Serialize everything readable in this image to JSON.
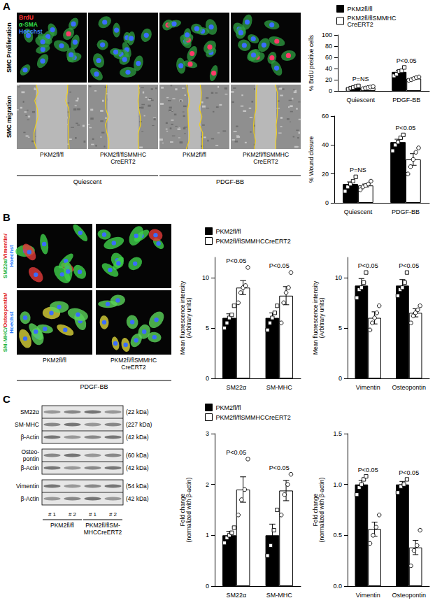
{
  "panel_labels": [
    "A",
    "B",
    "C"
  ],
  "panel_a_images": {
    "channel_labels": [
      {
        "text": "BrdU",
        "color": "#ff3030"
      },
      {
        "text": "α-SMA",
        "color": "#33e04a"
      },
      {
        "text": "Hoechst",
        "color": "#3f8cff"
      }
    ],
    "row_labels": [
      "SMC Proliferation",
      "SMC migration"
    ],
    "column_labels": [
      "PKM2fl/fl",
      "PKM2fl/flSMMHC\nCreERT2",
      "PKM2fl/fl",
      "PKM2fl/flSMMHC\nCreERT2"
    ],
    "group_labels": [
      "Quiescent",
      "PDGF-BB"
    ]
  },
  "panel_b_images": {
    "row_labels": [
      [
        [
          {
            "text": "SM22α/",
            "color": "#22b33a"
          },
          {
            "text": "Vimentin/",
            "color": "#e02020"
          }
        ],
        [
          {
            "text": "Hoechst",
            "color": "#2f7fff"
          }
        ]
      ],
      [
        [
          {
            "text": "SM-MHC/",
            "color": "#22b33a"
          },
          {
            "text": "Osteopontin/",
            "color": "#e02020"
          }
        ],
        [
          {
            "text": "Hoechst",
            "color": "#2f7fff"
          }
        ]
      ]
    ],
    "column_labels": [
      "PKM2fl/fl",
      "PKM2fl/flSMMHC\nCreERT2"
    ],
    "group_label": "PDGF-BB"
  },
  "panel_c_blots": {
    "groups": [
      [
        {
          "label": "SM22α",
          "size": "(22 kDa)"
        },
        {
          "label": "SM-MHC",
          "size": "(227 kDa)"
        },
        {
          "label": "β-Actin",
          "size": "(42 kDa)"
        }
      ],
      [
        {
          "label": "Osteo-\npontin",
          "size": "(60 kDa)"
        },
        {
          "label": "β-Actin",
          "size": "(42 kDa)"
        }
      ],
      [
        {
          "label": "Vimentin",
          "size": "(54 kDa)"
        },
        {
          "label": "β-Actin",
          "size": "(42 kDa)"
        }
      ]
    ],
    "lane_labels": [
      "# 1",
      "# 2",
      "# 1",
      "# 2"
    ],
    "group_labels": [
      "PKM2fl/fl",
      "PKM2fl/flSM-\nMHCCreERT2"
    ]
  },
  "chart_data": [
    {
      "type": "bar",
      "ylabel": "% BrdU positive cells",
      "categories": [
        "Quiescent",
        "PDGF-BB"
      ],
      "ylim": [
        0,
        100
      ],
      "yticks": [
        0,
        20,
        40,
        60,
        80,
        100
      ],
      "legend": "top",
      "series": [
        {
          "name": "PKM2fl/fl",
          "color": "#000000",
          "marker": "square",
          "values": [
            6,
            34
          ],
          "errors": [
            1.2,
            3
          ],
          "points": [
            [
              3,
              5,
              6,
              8,
              9
            ],
            [
              27,
              30,
              35,
              36,
              42
            ]
          ]
        },
        {
          "name": "PKM2fl/flSMMHC\nCreERT2",
          "color": "#ffffff",
          "marker": "circle",
          "values": [
            6,
            22
          ],
          "errors": [
            1,
            1.5
          ],
          "points": [
            [
              4,
              5,
              6,
              7,
              8
            ],
            [
              19,
              20,
              22,
              24,
              25
            ]
          ]
        }
      ],
      "annotations": [
        {
          "category": "Quiescent",
          "text": "P=NS"
        },
        {
          "category": "PDGF-BB",
          "text": "P<0.05"
        }
      ]
    },
    {
      "type": "bar",
      "ylabel": "% Wound closure",
      "categories": [
        "Quiescent",
        "PDGF-BB"
      ],
      "ylim": [
        0,
        60
      ],
      "yticks": [
        0,
        20,
        40,
        60
      ],
      "series": [
        {
          "color": "#000000",
          "marker": "square",
          "values": [
            13,
            42
          ],
          "errors": [
            1.5,
            2
          ],
          "points": [
            [
              8,
              11,
              13,
              15,
              18
            ],
            [
              36,
              40,
              42,
              45,
              47
            ]
          ]
        },
        {
          "color": "#ffffff",
          "marker": "circle",
          "values": [
            12,
            30
          ],
          "errors": [
            1,
            4
          ],
          "points": [
            [
              9,
              11,
              12,
              13,
              15
            ],
            [
              20,
              25,
              30,
              35,
              38
            ]
          ]
        }
      ],
      "annotations": [
        {
          "category": "Quiescent",
          "text": "P=NS"
        },
        {
          "category": "PDGF-BB",
          "text": "P<0.05"
        }
      ]
    },
    {
      "type": "bar",
      "ylabel": "Mean fluorescence intensity\n(Arbitrary units)",
      "categories": [
        "SM22α",
        "SM-MHC"
      ],
      "ylim": [
        0,
        12
      ],
      "yticks": [
        0,
        5,
        10
      ],
      "legend": "top",
      "series": [
        {
          "name": "PKM2fl/fl",
          "color": "#000000",
          "marker": "square",
          "values": [
            6,
            6
          ],
          "errors": [
            0.4,
            0.5
          ],
          "points": [
            [
              5,
              5.5,
              6,
              6.3,
              7.2
            ],
            [
              4.8,
              5.5,
              6,
              6.5,
              7.2
            ]
          ]
        },
        {
          "name": "PKM2fl/flSMMHCCreERT2",
          "color": "#ffffff",
          "marker": "circle",
          "values": [
            9,
            8.2
          ],
          "errors": [
            0.7,
            0.9
          ],
          "points": [
            [
              7.5,
              8.5,
              9,
              9.2,
              11
            ],
            [
              5.5,
              7.5,
              8.5,
              9,
              10.5
            ]
          ]
        }
      ],
      "annotations": [
        {
          "category": "SM22α",
          "text": "P<0.05"
        },
        {
          "category": "SM-MHC",
          "text": "P<0.05"
        }
      ]
    },
    {
      "type": "bar",
      "ylabel": "Mean fluorescence intensity\n(Arbitrary units)",
      "categories": [
        "Vimentin",
        "Osteopontin"
      ],
      "ylim": [
        0,
        12
      ],
      "yticks": [
        0,
        5,
        10
      ],
      "series": [
        {
          "color": "#000000",
          "marker": "square",
          "values": [
            9.2,
            9.2
          ],
          "errors": [
            0.7,
            0.6
          ],
          "points": [
            [
              8,
              8.8,
              9,
              9.5,
              10.5
            ],
            [
              8.2,
              8.8,
              9,
              9.5,
              10.5
            ]
          ]
        },
        {
          "color": "#ffffff",
          "marker": "circle",
          "values": [
            6,
            6.5
          ],
          "errors": [
            0.6,
            0.4
          ],
          "points": [
            [
              4.8,
              5.5,
              6,
              6.5,
              7.2
            ],
            [
              5.5,
              6.2,
              6.5,
              6.8,
              7.2
            ]
          ]
        }
      ],
      "annotations": [
        {
          "category": "Vimentin",
          "text": "P<0.05"
        },
        {
          "category": "Osteopontin",
          "text": "P<0.05"
        }
      ]
    },
    {
      "type": "bar",
      "ylabel": "Fold change\n(normalized with β-actin)",
      "categories": [
        "SM22α",
        "SM-MHC"
      ],
      "ylim": [
        0,
        3
      ],
      "yticks": [
        0,
        1,
        2,
        3
      ],
      "legend": "top",
      "series": [
        {
          "name": "PKM2fl/fl",
          "color": "#000000",
          "marker": "square",
          "values": [
            1,
            1
          ],
          "errors": [
            0.08,
            0.22
          ],
          "points": [
            [
              0.85,
              0.95,
              1,
              1.05,
              1.15
            ],
            [
              0.6,
              0.8,
              1.1,
              1.5
            ]
          ]
        },
        {
          "name": "PKM2fl/flSMMHCCreERT2",
          "color": "#ffffff",
          "marker": "circle",
          "values": [
            1.9,
            1.88
          ],
          "errors": [
            0.25,
            0.2
          ],
          "points": [
            [
              1.4,
              1.7,
              1.9,
              2.5
            ],
            [
              1.4,
              1.8,
              2,
              2.2
            ]
          ]
        }
      ],
      "annotations": [
        {
          "category": "SM22α",
          "text": "P<0.05"
        },
        {
          "category": "SM-MHC",
          "text": "P<0.05"
        }
      ]
    },
    {
      "type": "bar",
      "ylabel": "Fold change\n(normalized with β-actin)",
      "categories": [
        "Vimentin",
        "Osteopontin"
      ],
      "ylim": [
        0,
        1.5
      ],
      "yticks": [
        {
          "value": 0,
          "label": "0.0"
        },
        0.5,
        {
          "value": 1,
          "label": "1.0"
        },
        1.5
      ],
      "series": [
        {
          "color": "#000000",
          "marker": "square",
          "values": [
            1,
            1
          ],
          "errors": [
            0.04,
            0.03
          ],
          "points": [
            [
              0.9,
              0.97,
              1,
              1.05,
              1.08
            ],
            [
              0.92,
              0.98,
              1,
              1.05
            ]
          ]
        },
        {
          "color": "#ffffff",
          "marker": "circle",
          "values": [
            0.56,
            0.38
          ],
          "errors": [
            0.07,
            0.07
          ],
          "points": [
            [
              0.42,
              0.5,
              0.58,
              0.7
            ],
            [
              0.2,
              0.35,
              0.4,
              0.55
            ]
          ]
        }
      ],
      "annotations": [
        {
          "category": "Vimentin",
          "text": "P<0.05"
        },
        {
          "category": "Osteopontin",
          "text": "P<0.05"
        }
      ]
    }
  ]
}
